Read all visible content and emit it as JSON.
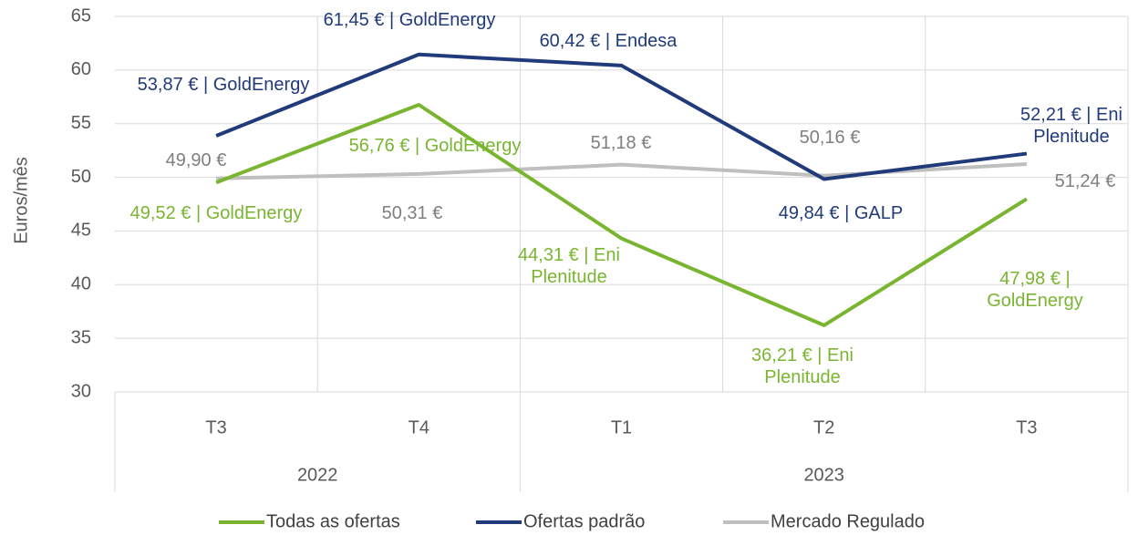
{
  "chart_data": {
    "type": "line",
    "y_label": "Euros/mês",
    "categories": [
      "T3",
      "T4",
      "T1",
      "T2",
      "T3"
    ],
    "x_groups": [
      {
        "label": "2022",
        "count": 2
      },
      {
        "label": "2023",
        "count": 3
      }
    ],
    "ylim": [
      30,
      65
    ],
    "yticks": [
      30,
      35,
      40,
      45,
      50,
      55,
      60,
      65
    ],
    "grid": true,
    "series": [
      {
        "name": "Todas as ofertas",
        "color": "#7ab531",
        "values": [
          49.52,
          56.76,
          44.31,
          36.21,
          47.98
        ],
        "value_labels": [
          "49,52 € | GoldEnergy",
          "56,76 € | GoldEnergy",
          "44,31 € | Eni Plenitude",
          "36,21 € | Eni Plenitude",
          "47,98 € | GoldEnergy"
        ]
      },
      {
        "name": "Ofertas padrão",
        "color": "#203a7a",
        "values": [
          53.87,
          61.45,
          60.42,
          49.84,
          52.21
        ],
        "value_labels": [
          "53,87 € | GoldEnergy",
          "61,45 € | GoldEnergy",
          "60,42 € | Endesa",
          "49,84 € | GALP",
          "52,21 € | Eni Plenitude"
        ]
      },
      {
        "name": "Mercado Regulado",
        "color": "#bfbfbf",
        "values": [
          49.9,
          50.31,
          51.18,
          50.16,
          51.24
        ],
        "value_labels": [
          "49,90 €",
          "50,31 €",
          "51,18 €",
          "50,16 €",
          "51,24 €"
        ]
      }
    ],
    "legend": "bottom"
  }
}
